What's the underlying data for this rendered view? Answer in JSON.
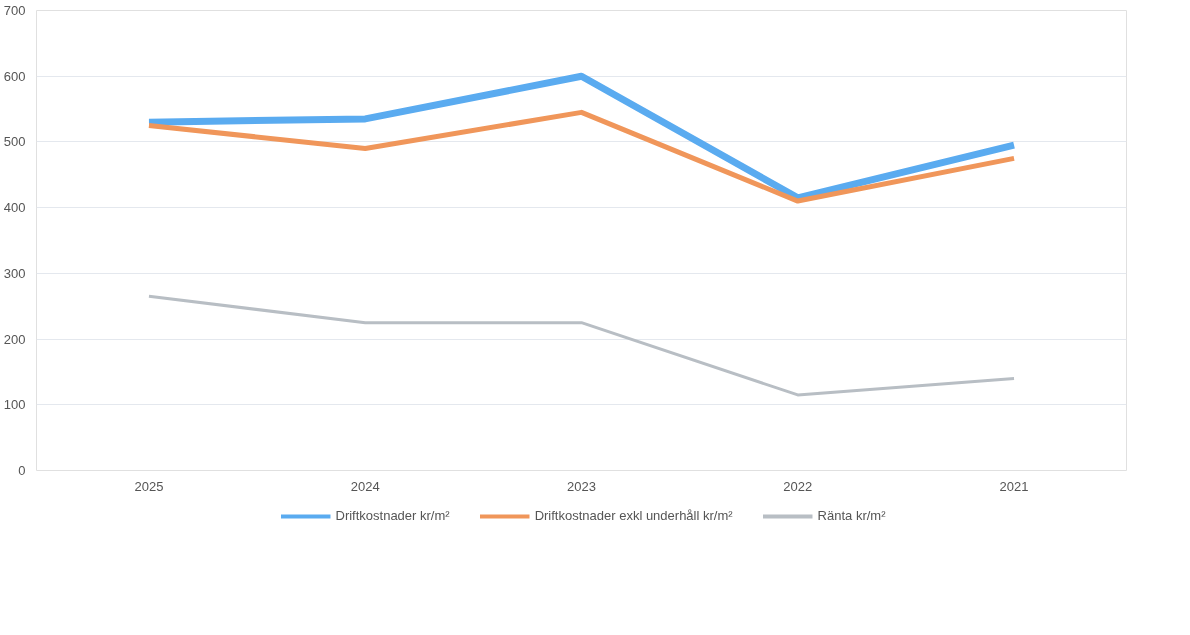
{
  "chart_data": {
    "type": "line",
    "categories": [
      "2025",
      "2024",
      "2023",
      "2022",
      "2021"
    ],
    "series": [
      {
        "name": "Driftkostnader kr/m²",
        "color": "#5aabf0",
        "values": [
          530,
          535,
          600,
          415,
          495
        ]
      },
      {
        "name": "Driftkostnader exkl underhåll kr/m²",
        "color": "#f0965a",
        "values": [
          525,
          490,
          545,
          410,
          475
        ]
      },
      {
        "name": "Ränta kr/m²",
        "color": "#b8bec4",
        "values": [
          265,
          225,
          225,
          115,
          140
        ]
      }
    ],
    "ylim": [
      0,
      700
    ],
    "yticks": [
      0,
      100,
      200,
      300,
      400,
      500,
      600,
      700
    ],
    "grid": "y",
    "legend": "bottom",
    "marker": "none",
    "line_style": "solid"
  }
}
